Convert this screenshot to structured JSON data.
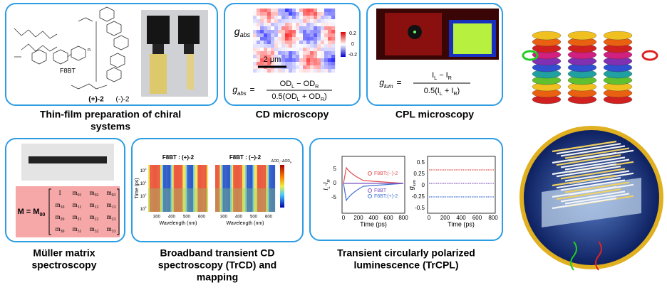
{
  "panels": {
    "film": {
      "caption": [
        "Thin-film preparation of chiral",
        "systems"
      ],
      "polymer": "F8BT",
      "n": "n",
      "plus": "(+)-2",
      "minus": "(-)-2"
    },
    "cd": {
      "caption": "CD microscopy",
      "symbol": [
        "g",
        "abs"
      ],
      "colorbar": [
        "0.2",
        "0",
        "-0.2"
      ],
      "scale": "2 μm",
      "formula": {
        "lhs": [
          "g",
          "abs"
        ],
        "eq": "=",
        "num": [
          "OD",
          "L",
          " − OD",
          "R"
        ],
        "den": [
          "0.5(OD",
          "L",
          " + OD",
          "R",
          ")"
        ]
      }
    },
    "cpl": {
      "caption": "CPL microscopy",
      "formula": {
        "lhs": [
          "g",
          "lum"
        ],
        "eq": "=",
        "num": [
          "I",
          "L",
          " − I",
          "R"
        ],
        "den": [
          "0.5(I",
          "L",
          " + I",
          "R",
          ")"
        ]
      }
    },
    "muller": {
      "caption": [
        "Müller matrix",
        "spectroscopy"
      ],
      "lhs": [
        "M = M",
        "00"
      ],
      "rows": [
        [
          [
            "1"
          ],
          [
            "m",
            "01"
          ],
          [
            "m",
            "02"
          ],
          [
            "m",
            "03"
          ]
        ],
        [
          [
            "m",
            "10"
          ],
          [
            "m",
            "11"
          ],
          [
            "m",
            "12"
          ],
          [
            "m",
            "13"
          ]
        ],
        [
          [
            "m",
            "20"
          ],
          [
            "m",
            "21"
          ],
          [
            "m",
            "22"
          ],
          [
            "m",
            "23"
          ]
        ],
        [
          [
            "m",
            "30"
          ],
          [
            "m",
            "31"
          ],
          [
            "m",
            "32"
          ],
          [
            "m",
            "33"
          ]
        ]
      ]
    },
    "trcd": {
      "caption": [
        "Broadband transient CD",
        "spectroscopy (TrCD) and",
        "mapping"
      ],
      "titles": [
        "F8BT : (+)-2",
        "F8BT : (−)-2"
      ],
      "ylabel": "Time (ps)",
      "yticks": [
        [
          "10",
          "0"
        ],
        [
          "10",
          "1"
        ],
        [
          "10",
          "2"
        ],
        [
          "10",
          "3"
        ]
      ],
      "xticks": [
        "300",
        "400",
        "500",
        "600"
      ],
      "xlabel": "Wavelength (nm)",
      "cbar": [
        "ΔOD",
        "L",
        "−ΔOD",
        "R"
      ]
    },
    "trcpl": {
      "caption": [
        "Transient circularly polarized",
        "luminescence (TrCPL)"
      ],
      "left": {
        "ylabel": [
          "I",
          "L",
          "-I",
          "R"
        ],
        "yticks": [
          "5",
          "0",
          "-5"
        ],
        "xticks": [
          "0",
          "200",
          "400",
          "600",
          "800"
        ],
        "xlabel": "Time (ps)",
        "legend": [
          "F8BT:(−)-2",
          "F8BT",
          "F8BT:(+)-2"
        ]
      },
      "right": {
        "ylabel": [
          "g",
          "lum"
        ],
        "yticks": [
          "0.5",
          "0.25",
          "0",
          "-0.25",
          "-0.5"
        ],
        "xticks": [
          "0",
          "200",
          "400",
          "600",
          "800"
        ],
        "xlabel": "Time (ps)"
      }
    }
  }
}
